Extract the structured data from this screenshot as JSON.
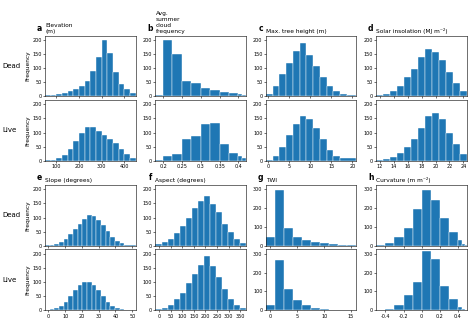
{
  "chart_data": [
    {
      "type": "histogram",
      "panel_label": "a",
      "title": "Elevation\n(m)",
      "ylabel": "Frequency",
      "row_label": "Dead",
      "bins": [
        50,
        75,
        100,
        125,
        150,
        175,
        200,
        225,
        250,
        275,
        300,
        325,
        350,
        375,
        400,
        425,
        450
      ],
      "counts": [
        3,
        5,
        8,
        12,
        18,
        25,
        35,
        55,
        90,
        140,
        200,
        155,
        85,
        45,
        25,
        12
      ],
      "xlim": [
        50,
        450
      ],
      "xticks": [
        100,
        200,
        300,
        400
      ],
      "ylim": [
        0,
        216
      ],
      "yticks": [
        0,
        50,
        100,
        150,
        200
      ],
      "tick_labels": "y"
    },
    {
      "type": "histogram",
      "panel_label": "b",
      "title": "Avg.\nsummer\ncloud\nfrequency",
      "bins": [
        0.18,
        0.2,
        0.225,
        0.25,
        0.275,
        0.3,
        0.325,
        0.35,
        0.375,
        0.4,
        0.41,
        0.42
      ],
      "counts": [
        3,
        200,
        150,
        55,
        48,
        28,
        22,
        15,
        12,
        8,
        5
      ],
      "xlim": [
        0.18,
        0.42
      ],
      "xticks": [
        0.2,
        0.25,
        0.3,
        0.35,
        0.4
      ],
      "ylim": [
        0,
        216
      ],
      "yticks": [
        0,
        50,
        100,
        150,
        200
      ],
      "tick_labels": "y"
    },
    {
      "type": "histogram",
      "panel_label": "c",
      "title": "Max. tree height (m)",
      "bins": [
        -0.5,
        1.1,
        2.7,
        4.3,
        5.9,
        7.5,
        9.1,
        10.7,
        12.3,
        13.9,
        15.5,
        17.1,
        18.7,
        21
      ],
      "counts": [
        8,
        38,
        78,
        120,
        160,
        190,
        148,
        108,
        68,
        38,
        18,
        8,
        3
      ],
      "xlim": [
        -0.5,
        21
      ],
      "xticks": [
        0,
        5,
        10,
        15,
        20
      ],
      "ylim": [
        0,
        216
      ],
      "yticks": [
        0,
        50,
        100,
        150,
        200
      ],
      "tick_labels": "y"
    },
    {
      "type": "histogram",
      "panel_label": "d",
      "title": "Solar insolation (MJ m⁻²)",
      "bins": [
        11.5,
        12.5,
        13.5,
        14.5,
        15.5,
        16.5,
        17.5,
        18.5,
        19.5,
        20.5,
        21.5,
        22.5,
        23.5,
        24.5
      ],
      "counts": [
        3,
        8,
        18,
        38,
        68,
        98,
        138,
        168,
        158,
        128,
        88,
        48,
        18
      ],
      "xlim": [
        11.5,
        24.5
      ],
      "xticks": [
        12,
        14,
        16,
        18,
        20,
        22,
        24
      ],
      "ylim": [
        0,
        216
      ],
      "yticks": [
        0,
        50,
        100,
        150,
        200
      ],
      "tick_labels": "y"
    },
    {
      "type": "histogram",
      "ylabel": "Frequency",
      "row_label": "Live",
      "bins": [
        50,
        75,
        100,
        125,
        150,
        175,
        200,
        225,
        250,
        275,
        300,
        325,
        350,
        375,
        400,
        425,
        450
      ],
      "counts": [
        2,
        4,
        10,
        20,
        40,
        70,
        100,
        120,
        120,
        105,
        90,
        78,
        62,
        42,
        25,
        10
      ],
      "xlim": [
        50,
        450
      ],
      "xticks": [
        100,
        200,
        300,
        400
      ],
      "ylim": [
        0,
        216
      ],
      "yticks": [
        0,
        50,
        100,
        150,
        200
      ]
    },
    {
      "type": "histogram",
      "bins": [
        0.18,
        0.2,
        0.225,
        0.25,
        0.275,
        0.3,
        0.325,
        0.35,
        0.375,
        0.4,
        0.41,
        0.42
      ],
      "counts": [
        2,
        15,
        25,
        78,
        88,
        130,
        135,
        58,
        28,
        15,
        8
      ],
      "xlim": [
        0.18,
        0.42
      ],
      "xticks": [
        0.2,
        0.25,
        0.3,
        0.35,
        0.4
      ],
      "ylim": [
        0,
        216
      ],
      "yticks": [
        0,
        50,
        100,
        150,
        200
      ]
    },
    {
      "type": "histogram",
      "bins": [
        -0.5,
        1.1,
        2.7,
        4.3,
        5.9,
        7.5,
        9.1,
        10.7,
        12.3,
        13.9,
        15.5,
        17.1,
        21
      ],
      "counts": [
        4,
        18,
        48,
        90,
        130,
        158,
        148,
        118,
        78,
        38,
        18,
        8
      ],
      "xlim": [
        -0.5,
        21
      ],
      "xticks": [
        0,
        5,
        10,
        15,
        20
      ],
      "ylim": [
        0,
        216
      ],
      "yticks": [
        0,
        50,
        100,
        150,
        200
      ]
    },
    {
      "type": "histogram",
      "bins": [
        11.5,
        12.5,
        13.5,
        14.5,
        15.5,
        16.5,
        17.5,
        18.5,
        19.5,
        20.5,
        21.5,
        22.5,
        23.5,
        24.5
      ],
      "counts": [
        2,
        5,
        12,
        28,
        48,
        78,
        118,
        158,
        168,
        148,
        98,
        58,
        23
      ],
      "xlim": [
        11.5,
        24.5
      ],
      "xticks": [
        12,
        14,
        16,
        18,
        20,
        22,
        24
      ],
      "ylim": [
        0,
        216
      ],
      "yticks": [
        0,
        50,
        100,
        150,
        200
      ]
    },
    {
      "type": "histogram",
      "panel_label": "e",
      "title": "Slope (degrees)",
      "ylabel": "Frequency",
      "row_label": "Dead",
      "bins": [
        -2,
        0.78,
        3.56,
        6.33,
        9.11,
        11.89,
        14.67,
        17.44,
        20.22,
        23,
        25.78,
        28.56,
        31.33,
        34.11,
        36.89,
        39.67,
        42.44,
        45.22,
        52
      ],
      "counts": [
        1,
        3,
        6,
        12,
        22,
        40,
        58,
        78,
        95,
        108,
        105,
        92,
        72,
        52,
        32,
        18,
        8,
        3
      ],
      "xlim": [
        -2,
        52
      ],
      "xticks": [
        0,
        10,
        20,
        30,
        40,
        50
      ],
      "ylim": [
        0,
        216
      ],
      "yticks": [
        0,
        50,
        100,
        150,
        200
      ],
      "tick_labels": "y"
    },
    {
      "type": "histogram",
      "panel_label": "f",
      "title": "Aspect (degrees)",
      "bins": [
        -15,
        11,
        37,
        63,
        89,
        115,
        141,
        167,
        193,
        219,
        245,
        271,
        297,
        323,
        349,
        375
      ],
      "counts": [
        5,
        12,
        25,
        45,
        70,
        100,
        135,
        160,
        175,
        148,
        118,
        78,
        48,
        23,
        8
      ],
      "xlim": [
        -15,
        375
      ],
      "xticks": [
        0,
        50,
        100,
        150,
        200,
        250,
        300,
        350
      ],
      "ylim": [
        0,
        216
      ],
      "yticks": [
        0,
        50,
        100,
        150,
        200
      ],
      "tick_labels": "y"
    },
    {
      "type": "histogram",
      "panel_label": "g",
      "title": "TWI",
      "bins": [
        -0.8,
        0.88,
        2.56,
        4.24,
        5.92,
        7.6,
        9.28,
        10.96,
        12.64,
        14.32,
        16
      ],
      "counts": [
        45,
        295,
        95,
        45,
        28,
        18,
        12,
        8,
        4,
        2
      ],
      "xlim": [
        -0.8,
        16
      ],
      "xticks": [
        0,
        5,
        10,
        15
      ],
      "ylim": [
        0,
        324
      ],
      "yticks": [
        0,
        100,
        200,
        300
      ],
      "tick_labels": "y"
    },
    {
      "type": "histogram",
      "panel_label": "h",
      "title": "Curvature (m m⁻²)",
      "bins": [
        -0.5,
        -0.4,
        -0.3,
        -0.2,
        -0.1,
        0.0,
        0.1,
        0.2,
        0.3,
        0.4,
        0.45,
        0.48,
        0.5
      ],
      "counts": [
        3,
        15,
        45,
        95,
        195,
        295,
        245,
        145,
        75,
        28,
        8,
        2
      ],
      "xlim": [
        -0.5,
        0.5
      ],
      "xticks": [
        -0.4,
        -0.2,
        0,
        0.2,
        0.4
      ],
      "ylim": [
        0,
        324
      ],
      "yticks": [
        0,
        100,
        200,
        300
      ],
      "tick_labels": "y"
    },
    {
      "type": "histogram",
      "ylabel": "Frequency",
      "row_label": "Live",
      "bins": [
        -2,
        0.78,
        3.56,
        6.33,
        9.11,
        11.89,
        14.67,
        17.44,
        20.22,
        23,
        25.78,
        28.56,
        31.33,
        34.11,
        36.89,
        39.67,
        42.44,
        45.22,
        52
      ],
      "counts": [
        1,
        3,
        7,
        14,
        28,
        50,
        72,
        90,
        100,
        100,
        88,
        70,
        50,
        30,
        16,
        8,
        3,
        1
      ],
      "xlim": [
        -2,
        52
      ],
      "xticks": [
        0,
        10,
        20,
        30,
        40,
        50
      ],
      "ylim": [
        0,
        216
      ],
      "yticks": [
        0,
        50,
        100,
        150,
        200
      ]
    },
    {
      "type": "histogram",
      "bins": [
        -15,
        11,
        37,
        63,
        89,
        115,
        141,
        167,
        193,
        219,
        245,
        271,
        297,
        323,
        349,
        375
      ],
      "counts": [
        3,
        8,
        18,
        38,
        62,
        95,
        130,
        162,
        192,
        158,
        118,
        75,
        40,
        18,
        6
      ],
      "xlim": [
        -15,
        375
      ],
      "xticks": [
        0,
        50,
        100,
        150,
        200,
        250,
        300,
        350
      ],
      "ylim": [
        0,
        216
      ],
      "yticks": [
        0,
        50,
        100,
        150,
        200
      ]
    },
    {
      "type": "histogram",
      "bins": [
        -0.8,
        0.88,
        2.56,
        4.24,
        5.92,
        7.6,
        9.28,
        10.96,
        12.64,
        16
      ],
      "counts": [
        25,
        265,
        115,
        55,
        28,
        12,
        6,
        3,
        1
      ],
      "xlim": [
        -0.8,
        16
      ],
      "xticks": [
        0,
        5,
        10,
        15
      ],
      "ylim": [
        0,
        324
      ],
      "yticks": [
        0,
        100,
        200,
        300
      ]
    },
    {
      "type": "histogram",
      "bins": [
        -0.5,
        -0.4,
        -0.3,
        -0.2,
        -0.1,
        0.0,
        0.1,
        0.2,
        0.3,
        0.4,
        0.45,
        0.48,
        0.5
      ],
      "counts": [
        2,
        8,
        28,
        78,
        148,
        315,
        275,
        128,
        58,
        18,
        5,
        1
      ],
      "xlim": [
        -0.5,
        0.5
      ],
      "xticks": [
        -0.4,
        -0.2,
        0,
        0.2,
        0.4
      ],
      "ylim": [
        0,
        324
      ],
      "yticks": [
        0,
        100,
        200,
        300
      ]
    }
  ]
}
